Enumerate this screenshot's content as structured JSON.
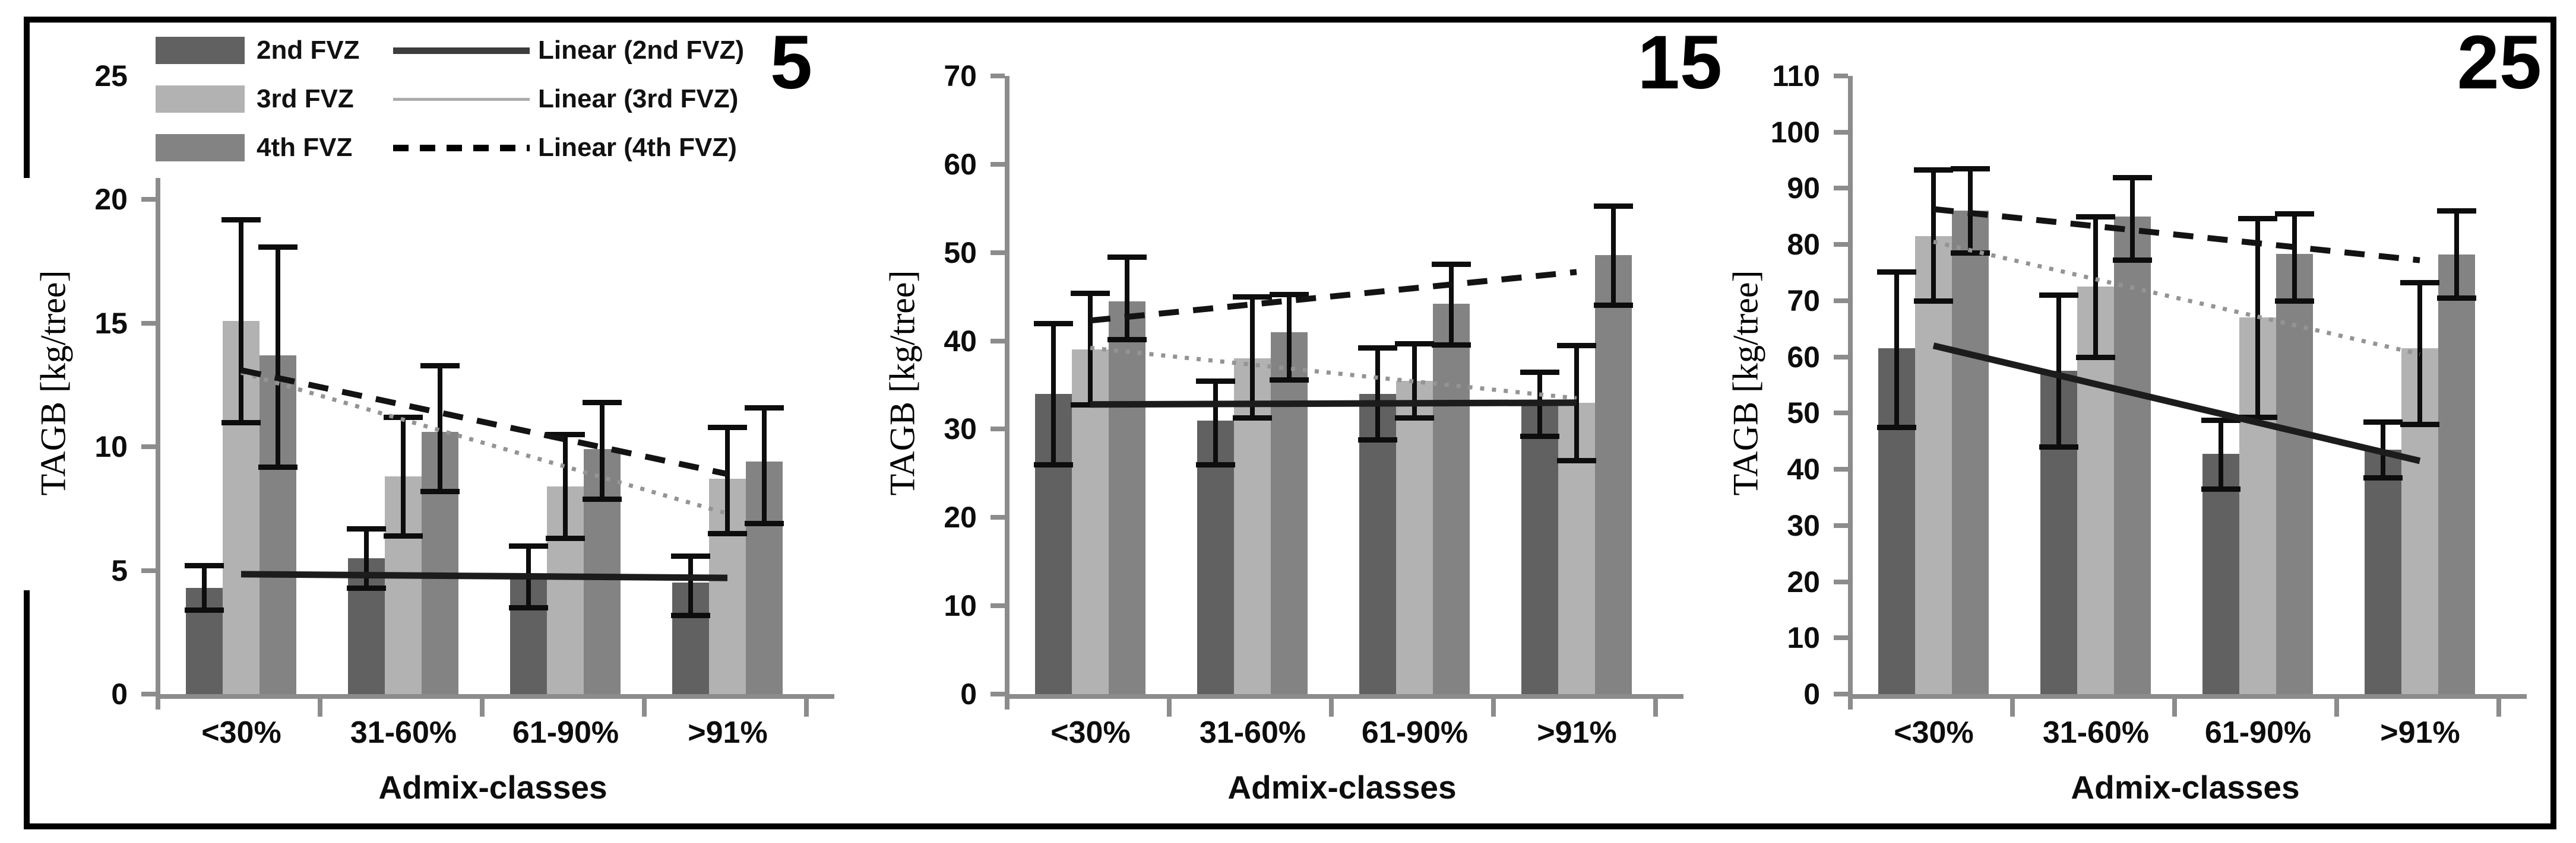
{
  "figure": {
    "legend": {
      "items": [
        {
          "label": "2nd FVZ",
          "line_label": "Linear (2nd FVZ)",
          "swatch_color": "#616161",
          "line_type": "solid-dark"
        },
        {
          "label": "3rd FVZ",
          "line_label": "Linear (3rd FVZ)",
          "swatch_color": "#b2b2b2",
          "line_type": "thin-gray"
        },
        {
          "label": "4th FVZ",
          "line_label": "Linear (4th FVZ)",
          "swatch_color": "#838383",
          "line_type": "dashed-black"
        }
      ]
    },
    "colors": {
      "series": [
        "#616161",
        "#b2b2b2",
        "#838383"
      ],
      "axis": "#8c8c8c",
      "error_bar": "#0d0d0d",
      "trend_2nd": "#1c1c1c",
      "trend_3rd": "#949494",
      "trend_4th": "#131313",
      "border": "#000000",
      "text": "#0d0d0d"
    }
  },
  "chart_data": [
    {
      "type": "bar",
      "panel_label": "5",
      "ylabel": "TAGB [kg/tree]",
      "xlabel": "Admix-classes",
      "ylim": [
        0,
        25
      ],
      "y_ticks": [
        0,
        5,
        10,
        15,
        20,
        25
      ],
      "grid": false,
      "legend_position": "top-left",
      "categories": [
        "<30%",
        "31-60%",
        "61-90%",
        ">91%"
      ],
      "series": [
        {
          "name": "2nd FVZ",
          "values": [
            4.3,
            5.5,
            4.8,
            4.5
          ],
          "err_low": [
            3.4,
            4.3,
            3.5,
            3.2
          ],
          "err_high": [
            5.2,
            6.7,
            6.0,
            5.6
          ]
        },
        {
          "name": "3rd FVZ",
          "values": [
            15.1,
            8.8,
            8.4,
            8.7
          ],
          "err_low": [
            11.0,
            6.4,
            6.3,
            6.5
          ],
          "err_high": [
            19.2,
            11.2,
            10.5,
            10.8
          ]
        },
        {
          "name": "4th FVZ",
          "values": [
            13.7,
            10.6,
            9.9,
            9.4
          ],
          "err_low": [
            9.2,
            8.2,
            7.9,
            6.9
          ],
          "err_high": [
            18.1,
            13.3,
            11.8,
            11.6
          ]
        }
      ],
      "trendlines": [
        {
          "name": "Linear (2nd FVZ)",
          "style": "solid",
          "start": 4.85,
          "end": 4.7
        },
        {
          "name": "Linear (3rd FVZ)",
          "style": "dotted",
          "start": 13.0,
          "end": 7.3
        },
        {
          "name": "Linear (4th FVZ)",
          "style": "dashed",
          "start": 13.1,
          "end": 8.9
        }
      ]
    },
    {
      "type": "bar",
      "panel_label": "15",
      "ylabel": "TAGB [kg/tree]",
      "xlabel": "Admix-classes",
      "ylim": [
        0,
        70
      ],
      "y_ticks": [
        0,
        10,
        20,
        30,
        40,
        50,
        60,
        70
      ],
      "grid": false,
      "legend_position": "none",
      "categories": [
        "<30%",
        "31-60%",
        "61-90%",
        ">91%"
      ],
      "series": [
        {
          "name": "2nd FVZ",
          "values": [
            34,
            31,
            34,
            33
          ],
          "err_low": [
            26,
            26,
            28.8,
            29.2
          ],
          "err_high": [
            42,
            35.5,
            39.2,
            36.5
          ]
        },
        {
          "name": "3rd FVZ",
          "values": [
            39,
            38,
            35.5,
            33
          ],
          "err_low": [
            32.8,
            31.3,
            31.3,
            26.5
          ],
          "err_high": [
            45.4,
            45,
            39.7,
            39.5
          ]
        },
        {
          "name": "4th FVZ",
          "values": [
            44.5,
            41,
            44.2,
            49.7
          ],
          "err_low": [
            40.2,
            35.6,
            39.6,
            44.1
          ],
          "err_high": [
            49.5,
            45.3,
            48.7,
            55.3
          ]
        }
      ],
      "trendlines": [
        {
          "name": "Linear (2nd FVZ)",
          "style": "solid",
          "start": 32.8,
          "end": 33.0
        },
        {
          "name": "Linear (3rd FVZ)",
          "style": "dotted",
          "start": 39.2,
          "end": 33.5
        },
        {
          "name": "Linear (4th FVZ)",
          "style": "dashed",
          "start": 42.3,
          "end": 47.8
        }
      ]
    },
    {
      "type": "bar",
      "panel_label": "25",
      "ylabel": "TAGB [kg/tree]",
      "xlabel": "Admix-classes",
      "ylim": [
        0,
        110
      ],
      "y_ticks": [
        0,
        10,
        20,
        30,
        40,
        50,
        60,
        70,
        80,
        90,
        100,
        110
      ],
      "grid": false,
      "legend_position": "none",
      "categories": [
        "<30%",
        "31-60%",
        "61-90%",
        ">91%"
      ],
      "series": [
        {
          "name": "2nd FVZ",
          "values": [
            61.5,
            57.5,
            42.8,
            43.5
          ],
          "err_low": [
            47.5,
            44,
            36.5,
            38.5
          ],
          "err_high": [
            75.2,
            71,
            48.8,
            48.5
          ]
        },
        {
          "name": "3rd FVZ",
          "values": [
            81.5,
            72.5,
            67,
            61.5
          ],
          "err_low": [
            70,
            60,
            49.3,
            48
          ],
          "err_high": [
            93.3,
            85,
            84.7,
            73.3
          ]
        },
        {
          "name": "4th FVZ",
          "values": [
            86,
            85,
            78.3,
            78.2
          ],
          "err_low": [
            78.5,
            77.3,
            70,
            70.5
          ],
          "err_high": [
            93.5,
            92,
            85.5,
            86
          ]
        }
      ],
      "trendlines": [
        {
          "name": "Linear (2nd FVZ)",
          "style": "solid",
          "start": 62,
          "end": 41.5
        },
        {
          "name": "Linear (3rd FVZ)",
          "style": "dotted",
          "start": 80.5,
          "end": 60.5
        },
        {
          "name": "Linear (4th FVZ)",
          "style": "dashed",
          "start": 86.3,
          "end": 77.2
        }
      ]
    }
  ]
}
